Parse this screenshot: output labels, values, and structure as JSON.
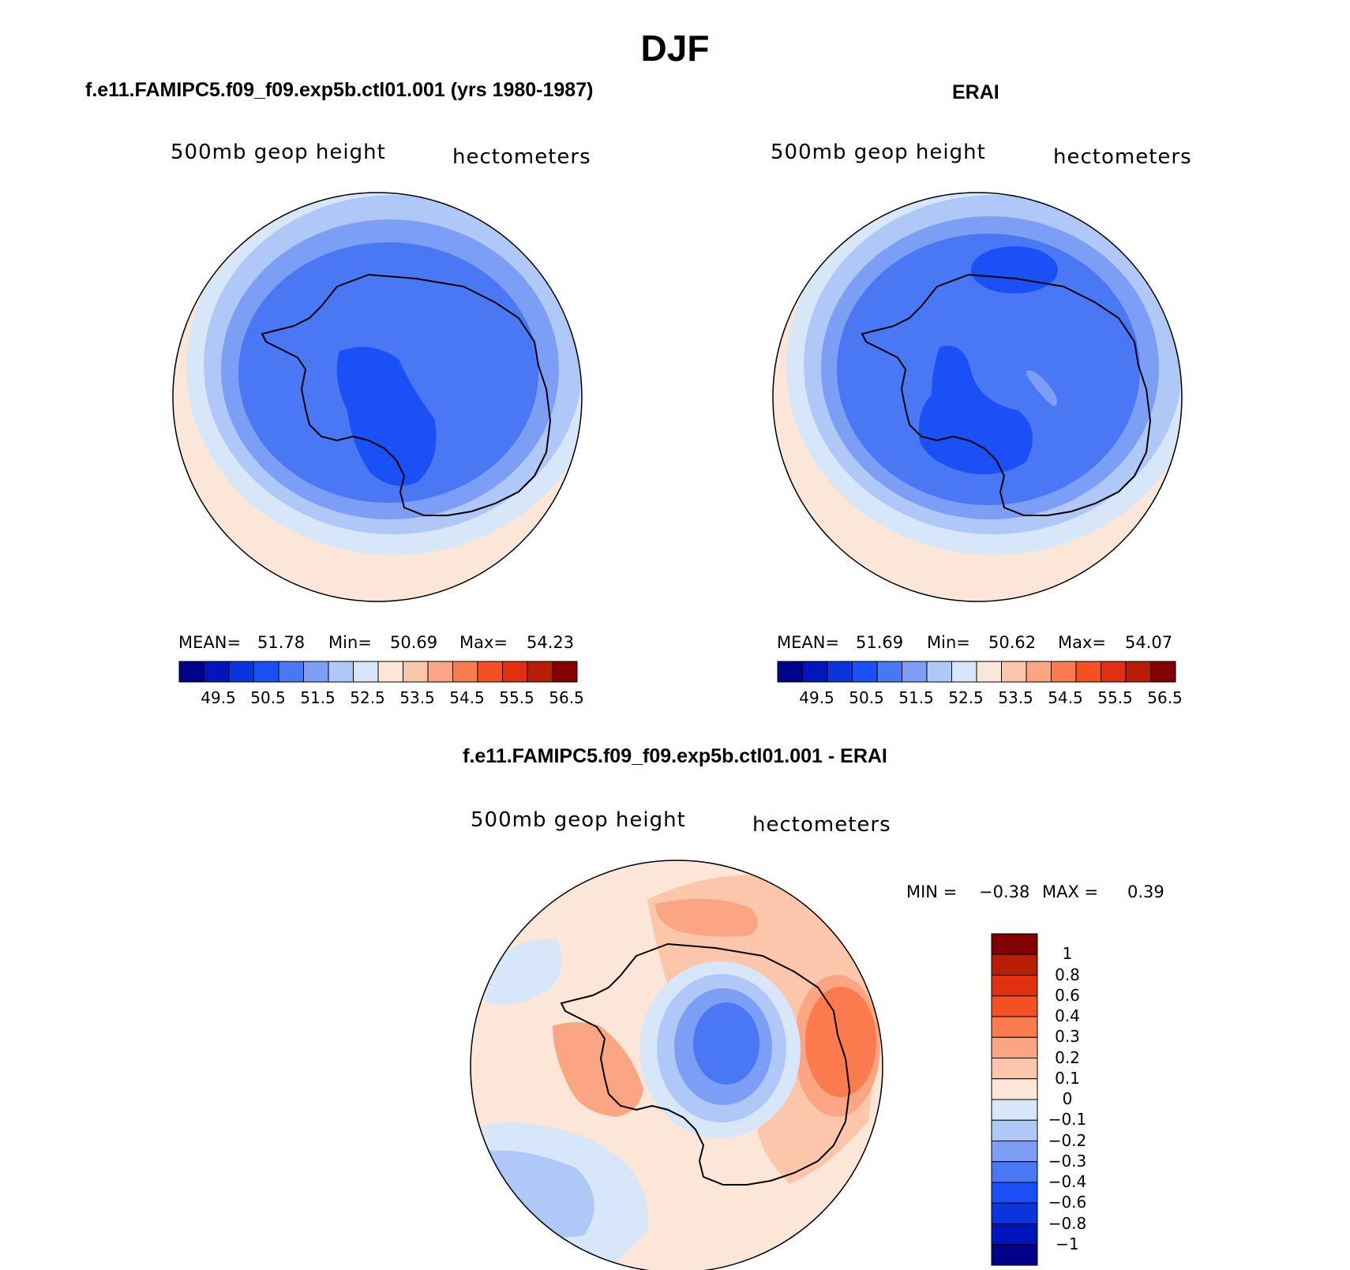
{
  "figure": {
    "title": "DJF",
    "panels": [
      {
        "title": "f.e11.FAMIPC5.f09_f09.exp5b.ctl01.001 (yrs 1980-1987)",
        "variable": "500mb geop height",
        "units": "hectometers",
        "stats": {
          "mean_label": "MEAN=",
          "mean": "51.78",
          "min_label": "Min=",
          "min": "50.69",
          "max_label": "Max=",
          "max": "54.23"
        }
      },
      {
        "title": "ERAI",
        "variable": "500mb geop height",
        "units": "hectometers",
        "stats": {
          "mean_label": "MEAN=",
          "mean": "51.69",
          "min_label": "Min=",
          "min": "50.62",
          "max_label": "Max=",
          "max": "54.07"
        }
      },
      {
        "title": "f.e11.FAMIPC5.f09_f09.exp5b.ctl01.001 - ERAI",
        "variable": "500mb geop height",
        "units": "hectometers",
        "stats": {
          "min_label": "MIN =",
          "min": "−0.38",
          "max_label": "MAX =",
          "max": "0.39"
        }
      }
    ],
    "colorbar_levels": [
      "49.5",
      "50.5",
      "51.5",
      "52.5",
      "53.5",
      "54.5",
      "55.5",
      "56.5"
    ],
    "colorbar_colors": [
      "#00008b",
      "#0015bb",
      "#0a35dc",
      "#1a50f5",
      "#4a78f5",
      "#7d9ef5",
      "#b0c8f8",
      "#d8e6fa",
      "#fbe6d8",
      "#fcc6ab",
      "#fca582",
      "#fb7a4e",
      "#f55022",
      "#e03010",
      "#b81e05",
      "#820000"
    ],
    "diff_levels": [
      "1",
      "0.8",
      "0.6",
      "0.4",
      "0.3",
      "0.2",
      "0.1",
      "0",
      "−0.1",
      "−0.2",
      "−0.3",
      "−0.4",
      "−0.6",
      "−0.8",
      "−1"
    ],
    "diff_colors": [
      "#820000",
      "#b81e05",
      "#e03010",
      "#f55022",
      "#fb7a4e",
      "#fca582",
      "#fcc6ab",
      "#fbe6d8",
      "#d8e6fa",
      "#b0c8f8",
      "#7d9ef5",
      "#4a78f5",
      "#1a50f5",
      "#0a35dc",
      "#0015bb",
      "#00008b"
    ]
  }
}
